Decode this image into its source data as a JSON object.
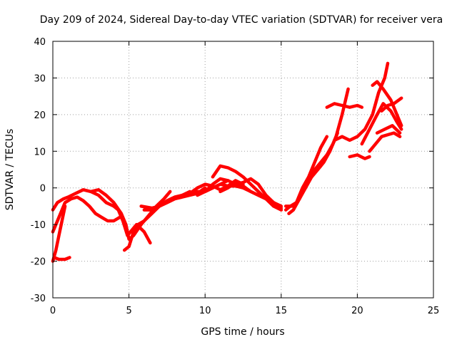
{
  "chart_data": {
    "type": "line",
    "title": "Day 209 of 2024, Sidereal Day-to-day VTEC variation (SDTVAR) for receiver vera",
    "xlabel": "GPS time / hours",
    "ylabel": "SDTVAR / TECUs",
    "xlim": [
      0,
      25
    ],
    "ylim": [
      -30,
      40
    ],
    "xticks": [
      0,
      5,
      10,
      15,
      20,
      25
    ],
    "yticks": [
      -30,
      -20,
      -10,
      0,
      10,
      20,
      30,
      40
    ],
    "grid": true,
    "color": "#ff0000",
    "series": [
      {
        "x": [
          0,
          0.3,
          0.7,
          1.0,
          1.5,
          2.0,
          2.5,
          3.0,
          3.5,
          4.0,
          4.3,
          4.6,
          4.9,
          5.1,
          5.5,
          6.0,
          6.4
        ],
        "y": [
          -6,
          -4,
          -3,
          -2.5,
          -1.5,
          -0.5,
          -1,
          -2,
          -4,
          -5,
          -6,
          -9,
          -13,
          -12,
          -10,
          -12,
          -15
        ]
      },
      {
        "x": [
          0,
          0.2,
          0.5,
          0.8,
          1.2,
          1.6,
          2.0,
          2.4,
          2.8,
          3.2,
          3.6,
          4.0,
          4.4
        ],
        "y": [
          -12,
          -10,
          -7,
          -4,
          -3,
          -2.5,
          -3.5,
          -5,
          -7,
          -8,
          -9,
          -9,
          -8
        ]
      },
      {
        "x": [
          0.1,
          0.4,
          0.8,
          1.1
        ],
        "y": [
          -19,
          -19.5,
          -19.5,
          -19
        ]
      },
      {
        "x": [
          0,
          0.2,
          0.4,
          0.6,
          0.8
        ],
        "y": [
          -20,
          -17,
          -13,
          -9,
          -5
        ]
      },
      {
        "x": [
          2.5,
          3.0,
          3.5,
          4.0,
          4.5,
          4.8,
          5.0,
          5.3,
          5.8,
          6.2,
          6.8,
          7.3,
          7.7
        ],
        "y": [
          -1,
          -0.5,
          -2,
          -4,
          -7,
          -10,
          -14,
          -13,
          -10,
          -8,
          -5,
          -3,
          -1
        ]
      },
      {
        "x": [
          4.7,
          5.0,
          5.3,
          5.6,
          6.0,
          6.5,
          7.0,
          7.5,
          8.0,
          8.5,
          9.0
        ],
        "y": [
          -17,
          -16,
          -12,
          -10,
          -9,
          -7,
          -5,
          -3.5,
          -2.5,
          -2,
          -1
        ]
      },
      {
        "x": [
          5.8,
          6.5,
          7.0,
          7.5,
          8.0,
          8.5,
          9.0,
          9.5,
          10.0
        ],
        "y": [
          -5,
          -5.5,
          -5,
          -4,
          -3,
          -2.5,
          -2,
          -1.5,
          0
        ]
      },
      {
        "x": [
          6.0,
          6.5,
          7.0,
          7.5,
          8.0,
          8.5,
          9.0,
          9.5,
          10.0,
          10.5,
          11.0,
          11.5
        ],
        "y": [
          -6,
          -6,
          -5,
          -4,
          -3,
          -2,
          -1.5,
          -1,
          -1,
          0,
          1,
          2
        ]
      },
      {
        "x": [
          8.5,
          9.0,
          9.5,
          10.0,
          10.5,
          11.0,
          11.5,
          12.0,
          12.5
        ],
        "y": [
          -2,
          -1.5,
          0,
          1,
          0.5,
          -0.5,
          0.5,
          2,
          1
        ]
      },
      {
        "x": [
          9.5,
          10.0,
          10.5,
          11.0,
          11.5,
          12.0,
          12.5,
          13.0,
          13.5,
          14.0,
          14.5,
          15.0
        ],
        "y": [
          -2,
          -1,
          0,
          1,
          0.5,
          0.5,
          0,
          -1,
          -2,
          -3,
          -4.5,
          -5.5
        ]
      },
      {
        "x": [
          10.5,
          11.0,
          11.5,
          12.0,
          12.5,
          13.0,
          13.5,
          14.0,
          14.5,
          15.0
        ],
        "y": [
          3,
          6,
          5.5,
          4.5,
          3,
          1,
          -1,
          -3,
          -5,
          -6
        ]
      },
      {
        "x": [
          10.0,
          10.5,
          11.0,
          11.5,
          12.0,
          12.5,
          13.0,
          13.5,
          14.0,
          14.5,
          15.0
        ],
        "y": [
          -1,
          1,
          2.5,
          2,
          1,
          1.5,
          2.5,
          1,
          -2,
          -4,
          -5
        ]
      },
      {
        "x": [
          11.0,
          11.5,
          12.0,
          12.5,
          13.0,
          13.5,
          14.0,
          14.5,
          15.0
        ],
        "y": [
          -1,
          0,
          1.5,
          0.5,
          -1,
          -2,
          -3,
          -4,
          -6
        ]
      },
      {
        "x": [
          15.3,
          15.6,
          16.0,
          16.4,
          16.8,
          17.2,
          17.6,
          18.0
        ],
        "y": [
          -6,
          -5,
          -4,
          0,
          3,
          7,
          11,
          14
        ]
      },
      {
        "x": [
          15.5,
          15.8,
          16.2,
          16.6,
          17.0,
          17.4,
          17.8,
          18.2
        ],
        "y": [
          -7,
          -6,
          -3,
          1,
          4,
          6,
          8,
          10
        ]
      },
      {
        "x": [
          15.3,
          15.8,
          16.2,
          16.6,
          17.0,
          17.4,
          17.8,
          18.2,
          18.6,
          19.0,
          19.4
        ],
        "y": [
          -5,
          -5,
          -3,
          0,
          3,
          5,
          7,
          10,
          14,
          20,
          27
        ]
      },
      {
        "x": [
          16.0,
          16.4,
          16.8,
          17.2,
          17.6,
          18.0,
          18.4,
          18.7
        ],
        "y": [
          -4,
          -1,
          2,
          4,
          6,
          9,
          12,
          15
        ]
      },
      {
        "x": [
          18.0,
          18.5,
          19.0,
          19.5,
          20.0,
          20.3
        ],
        "y": [
          22,
          23,
          22.5,
          22,
          22.5,
          22
        ]
      },
      {
        "x": [
          18.5,
          19.0,
          19.5,
          20.0,
          20.5,
          21.0,
          21.4,
          21.8,
          22.0
        ],
        "y": [
          13,
          14,
          13,
          14,
          16,
          20,
          26,
          30,
          34
        ]
      },
      {
        "x": [
          19.5,
          20.0,
          20.5,
          20.8
        ],
        "y": [
          8.5,
          9,
          8,
          8.5
        ]
      },
      {
        "x": [
          20.3,
          20.8,
          21.3,
          21.7,
          22.2,
          22.6,
          22.9
        ],
        "y": [
          12,
          16,
          20,
          23,
          21,
          18,
          16
        ]
      },
      {
        "x": [
          20.8,
          21.2,
          21.6,
          22.0,
          22.4,
          22.8
        ],
        "y": [
          10,
          12,
          14,
          14.5,
          15,
          14
        ]
      },
      {
        "x": [
          21.0,
          21.3,
          21.7,
          22.2,
          22.6,
          22.9
        ],
        "y": [
          28,
          29,
          27,
          24,
          20,
          17
        ]
      },
      {
        "x": [
          21.6,
          22.0,
          22.4,
          22.9
        ],
        "y": [
          21,
          22.5,
          23,
          24.5
        ]
      },
      {
        "x": [
          21.3,
          21.8,
          22.3,
          22.8
        ],
        "y": [
          15,
          16,
          17,
          15
        ]
      }
    ]
  }
}
